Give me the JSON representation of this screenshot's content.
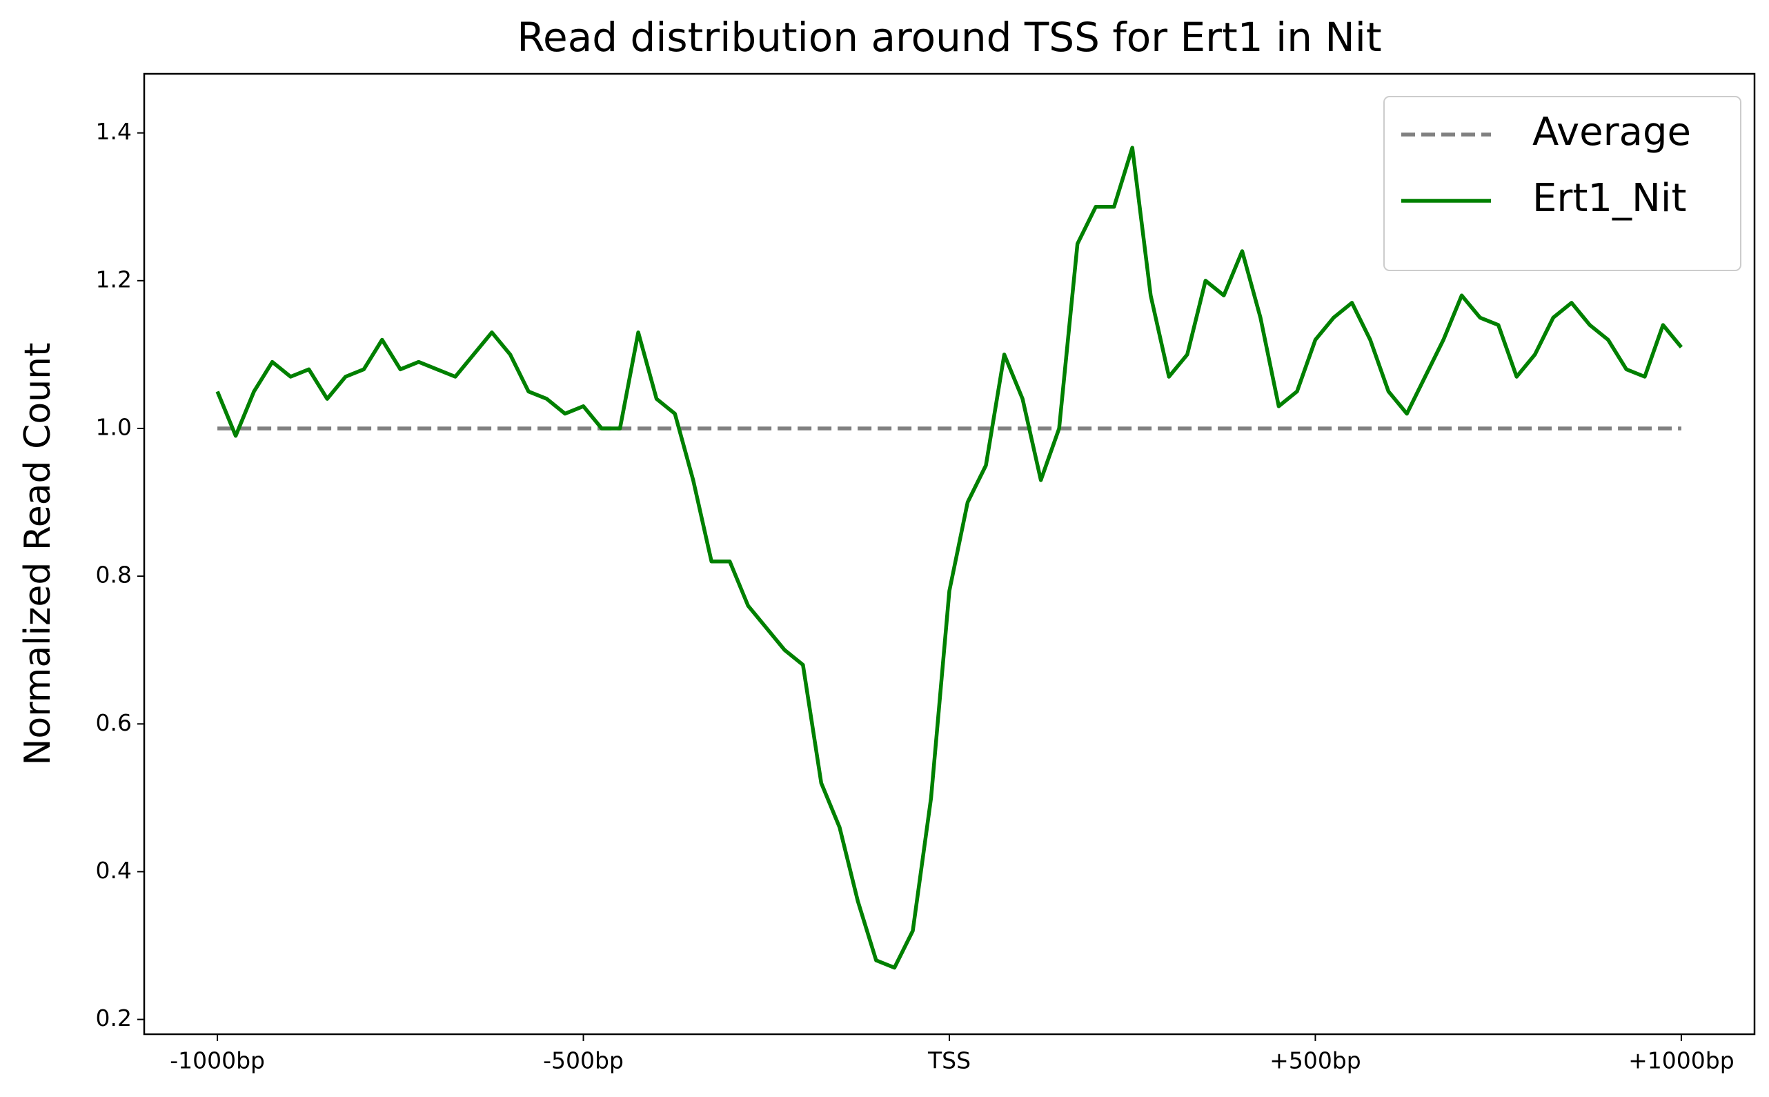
{
  "chart_data": {
    "type": "line",
    "title": "Read distribution around TSS for Ert1 in Nit",
    "ylabel": "Normalized Read Count",
    "xlim": [
      -1100,
      1100
    ],
    "ylim": [
      0.18,
      1.48
    ],
    "xticks": [
      {
        "value": -1000,
        "label": "-1000bp"
      },
      {
        "value": -500,
        "label": "-500bp"
      },
      {
        "value": 0,
        "label": "TSS"
      },
      {
        "value": 500,
        "label": "+500bp"
      },
      {
        "value": 1000,
        "label": "+1000bp"
      }
    ],
    "yticks": [
      0.2,
      0.4,
      0.6,
      0.8,
      {
        "value": 1,
        "label": "1.0"
      },
      1.2,
      1.4
    ],
    "legend": "upper right",
    "series": [
      {
        "name": "Average",
        "color": "#808080",
        "linestyle": "dashed",
        "x": [
          -1000,
          1000
        ],
        "values": [
          1,
          1
        ]
      },
      {
        "name": "Ert1_Nit",
        "color": "#008000",
        "linestyle": "solid",
        "x": [
          -1000,
          -975,
          -950,
          -925,
          -900,
          -875,
          -850,
          -825,
          -800,
          -775,
          -750,
          -725,
          -700,
          -675,
          -650,
          -625,
          -600,
          -575,
          -550,
          -525,
          -500,
          -475,
          -450,
          -425,
          -400,
          -375,
          -350,
          -325,
          -300,
          -275,
          -250,
          -225,
          -200,
          -175,
          -150,
          -125,
          -100,
          -75,
          -50,
          -25,
          0,
          25,
          50,
          75,
          100,
          125,
          150,
          175,
          200,
          225,
          250,
          275,
          300,
          325,
          350,
          375,
          400,
          425,
          450,
          475,
          500,
          525,
          550,
          575,
          600,
          625,
          650,
          675,
          700,
          725,
          750,
          775,
          800,
          825,
          850,
          875,
          900,
          925,
          950,
          975,
          1000
        ],
        "values": [
          1.05,
          0.99,
          1.05,
          1.09,
          1.07,
          1.08,
          1.04,
          1.07,
          1.08,
          1.12,
          1.08,
          1.09,
          1.08,
          1.07,
          1.1,
          1.13,
          1.1,
          1.05,
          1.04,
          1.02,
          1.03,
          1.0,
          1.0,
          1.13,
          1.04,
          1.02,
          0.93,
          0.82,
          0.82,
          0.76,
          0.73,
          0.7,
          0.68,
          0.52,
          0.46,
          0.36,
          0.28,
          0.27,
          0.32,
          0.5,
          0.78,
          0.9,
          0.95,
          1.1,
          1.04,
          0.93,
          1.0,
          1.25,
          1.3,
          1.3,
          1.38,
          1.18,
          1.07,
          1.1,
          1.2,
          1.18,
          1.24,
          1.15,
          1.03,
          1.05,
          1.12,
          1.15,
          1.17,
          1.12,
          1.05,
          1.02,
          1.07,
          1.12,
          1.18,
          1.15,
          1.14,
          1.07,
          1.1,
          1.15,
          1.17,
          1.14,
          1.12,
          1.08,
          1.07,
          1.14,
          1.11
        ]
      }
    ]
  }
}
